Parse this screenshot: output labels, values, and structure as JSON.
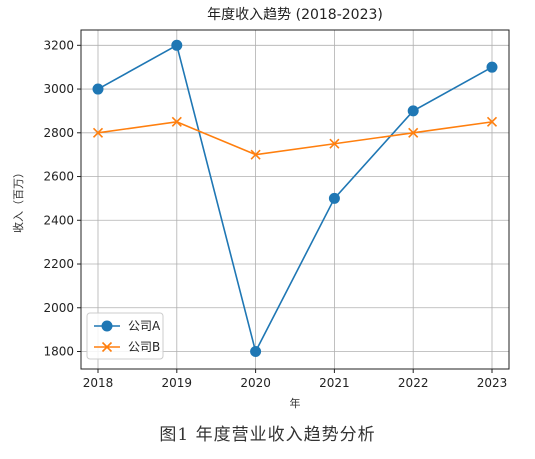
{
  "chart_data": {
    "type": "line",
    "title": "年度收入趋势 (2018-2023)",
    "xlabel": "年",
    "ylabel": "收入（百万）",
    "x": [
      "2018",
      "2019",
      "2020",
      "2021",
      "2022",
      "2023"
    ],
    "ylim": [
      1720,
      3270
    ],
    "yticks": [
      1800,
      2000,
      2200,
      2400,
      2600,
      2800,
      3000,
      3200
    ],
    "grid": true,
    "legend_position": "lower-left",
    "series": [
      {
        "name": "公司A",
        "values": [
          3000,
          3200,
          1800,
          2500,
          2900,
          3100
        ],
        "color": "#1f77b4",
        "marker": "circle"
      },
      {
        "name": "公司B",
        "values": [
          2800,
          2850,
          2700,
          2750,
          2800,
          2850
        ],
        "color": "#ff7f0e",
        "marker": "x"
      }
    ]
  },
  "caption": "图1 年度营业收入趋势分析"
}
